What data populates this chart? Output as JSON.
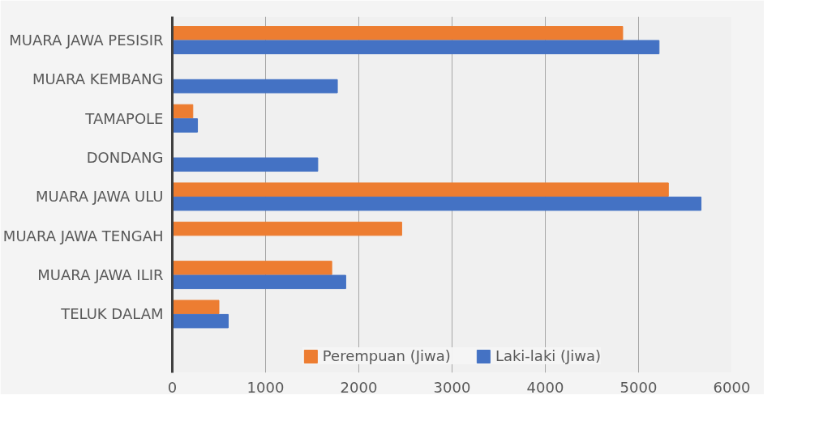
{
  "chart_data": {
    "type": "bar",
    "orientation": "horizontal",
    "categories": [
      "MUARA JAWA PESISIR",
      "MUARA KEMBANG",
      "TAMAPOLE",
      "DONDANG",
      "MUARA JAWA ULU",
      "MUARA JAWA TENGAH",
      "MUARA JAWA ILIR",
      "TELUK DALAM"
    ],
    "series": [
      {
        "name": "Perempuan (Jiwa)",
        "color": "#ed7d31",
        "values": [
          4830,
          null,
          220,
          null,
          5320,
          2460,
          1710,
          500
        ]
      },
      {
        "name": "Laki-laki (Jiwa)",
        "color": "#4472c4",
        "values": [
          5220,
          1770,
          270,
          1560,
          5670,
          null,
          1860,
          600
        ]
      }
    ],
    "xlim": [
      0,
      6000
    ],
    "xticks": [
      0,
      1000,
      2000,
      3000,
      4000,
      5000,
      6000
    ],
    "grid": "x",
    "legend": "bottom"
  }
}
